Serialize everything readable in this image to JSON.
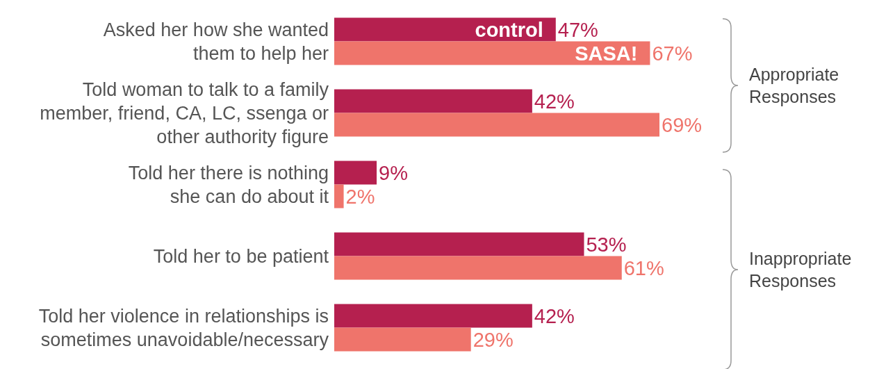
{
  "chart_data": {
    "type": "bar",
    "orientation": "horizontal",
    "categories": [
      "Asked her how she wanted\nthem to help her",
      "Told woman to talk to a family\nmember, friend, CA, LC, ssenga or\nother authority figure",
      "Told her there is nothing\nshe can do about it",
      "Told her to be patient",
      "Told her violence in relationships is\nsometimes unavoidable/necessary"
    ],
    "series": [
      {
        "name": "control",
        "color": "#b5204f",
        "values": [
          47,
          42,
          9,
          53,
          42
        ],
        "value_labels": [
          "47%",
          "42%",
          "9%",
          "53%",
          "42%"
        ]
      },
      {
        "name": "SASA!",
        "color": "#ef746b",
        "values": [
          67,
          69,
          2,
          61,
          29
        ],
        "value_labels": [
          "67%",
          "69%",
          "2%",
          "61%",
          "29%"
        ]
      }
    ],
    "tick_labels": "y",
    "annotations": [
      "Appropriate\nResponses",
      "Inappropriate\nResponses"
    ]
  }
}
